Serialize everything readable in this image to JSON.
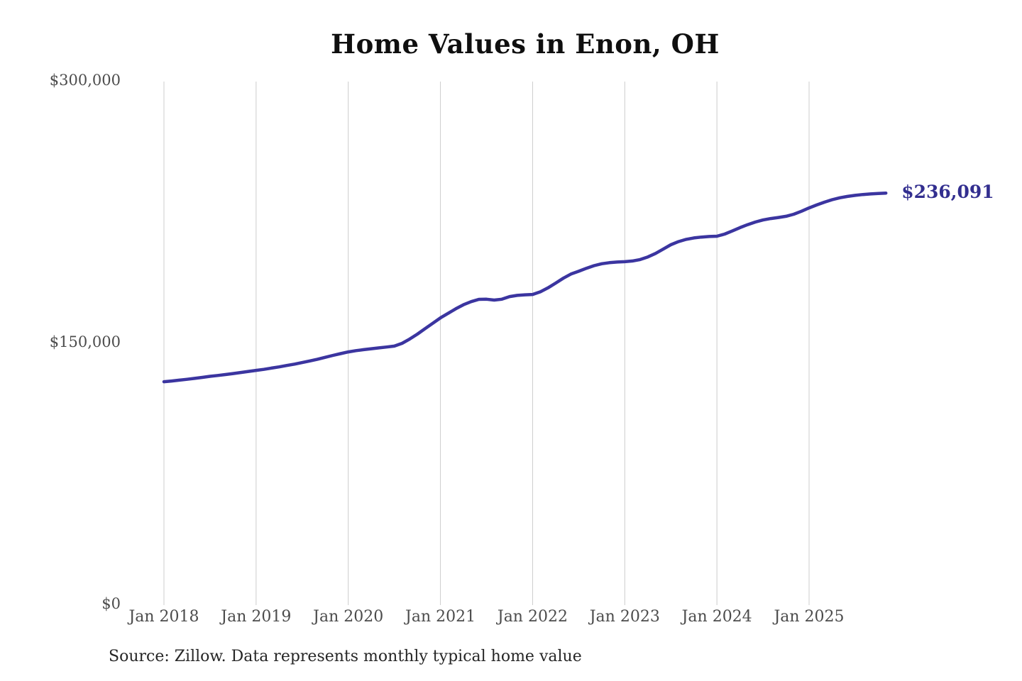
{
  "source_note": "Source: Zillow. Data represents monthly typical home value",
  "colors": {
    "line": "#3b35a0",
    "end_label": "#322e8f",
    "gridline": "#cccccc",
    "axis_text": "#4c4c4c",
    "title_text": "#0f0f0f",
    "source_text": "#262626",
    "background": "#ffffff"
  },
  "chart_data": {
    "type": "line",
    "title": "Home Values in Enon, OH",
    "x_start_month": "Jan 2018",
    "x_end_month": "Nov 2025",
    "x_ticks": [
      {
        "label": "Jan 2018",
        "month_index": 0
      },
      {
        "label": "Jan 2019",
        "month_index": 12
      },
      {
        "label": "Jan 2020",
        "month_index": 24
      },
      {
        "label": "Jan 2021",
        "month_index": 36
      },
      {
        "label": "Jan 2022",
        "month_index": 48
      },
      {
        "label": "Jan 2023",
        "month_index": 60
      },
      {
        "label": "Jan 2024",
        "month_index": 72
      },
      {
        "label": "Jan 2025",
        "month_index": 84
      }
    ],
    "y_ticks": [
      {
        "label": "$300,000",
        "value": 300000
      },
      {
        "label": "$150,000",
        "value": 150000
      },
      {
        "label": "$0",
        "value": 0
      }
    ],
    "ylim": [
      0,
      300000
    ],
    "grid": "vertical-only",
    "legend": "none",
    "end_label": "$236,091",
    "end_value": 236091,
    "series": [
      {
        "name": "Monthly typical home value",
        "color": "#3b35a0",
        "values": [
          128000,
          128400,
          128900,
          129400,
          129900,
          130500,
          131100,
          131600,
          132100,
          132700,
          133300,
          133900,
          134500,
          135100,
          135800,
          136500,
          137300,
          138100,
          139000,
          139900,
          140900,
          142000,
          143100,
          144100,
          145100,
          145800,
          146400,
          146900,
          147400,
          147900,
          148400,
          150000,
          152500,
          155300,
          158400,
          161500,
          164600,
          167200,
          169800,
          172100,
          173900,
          175200,
          175300,
          174800,
          175300,
          176800,
          177500,
          177800,
          178000,
          179500,
          181800,
          184500,
          187300,
          189700,
          191300,
          193000,
          194500,
          195600,
          196200,
          196600,
          196800,
          197200,
          198000,
          199500,
          201500,
          204000,
          206500,
          208300,
          209600,
          210400,
          210900,
          211200,
          211400,
          212600,
          214400,
          216300,
          218000,
          219500,
          220700,
          221500,
          222100,
          222800,
          224000,
          225700,
          227600,
          229300,
          230900,
          232300,
          233400,
          234200,
          234800,
          235300,
          235600,
          235900,
          236091
        ]
      }
    ]
  }
}
